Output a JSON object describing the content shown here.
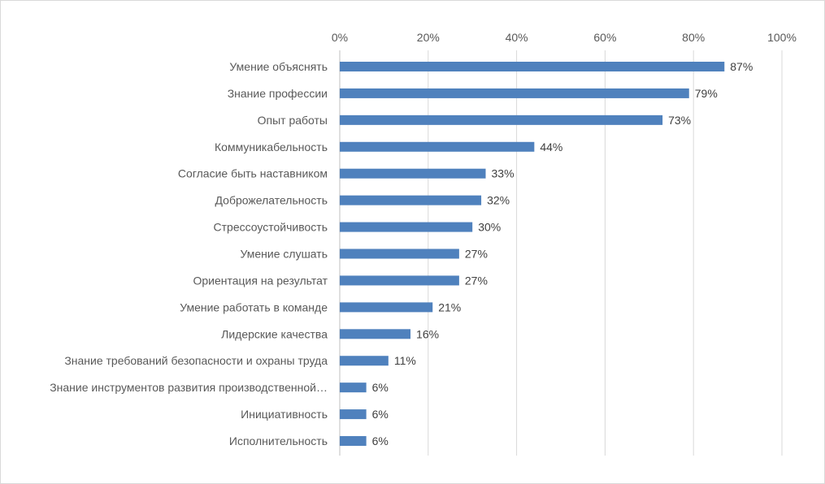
{
  "chart_data": {
    "type": "bar",
    "orientation": "horizontal",
    "title": "",
    "xlabel": "",
    "ylabel": "",
    "xlim": [
      0,
      100
    ],
    "x_ticks": [
      "0%",
      "20%",
      "40%",
      "60%",
      "80%",
      "100%"
    ],
    "x_axis_position": "top",
    "grid": true,
    "bar_color": "#4F81BD",
    "categories": [
      "Умение объяснять",
      "Знание профессии",
      "Опыт работы",
      "Коммуникабельность",
      "Согласие быть наставником",
      "Доброжелательность",
      "Стрессоустойчивость",
      "Умение слушать",
      "Ориентация на результат",
      "Умение работать в команде",
      "Лидерские качества",
      "Знание требований безопасности и охраны труда",
      "Знание инструментов развития производственной…",
      "Инициативность",
      "Исполнительность"
    ],
    "values": [
      87,
      79,
      73,
      44,
      33,
      32,
      30,
      27,
      27,
      21,
      16,
      11,
      6,
      6,
      6
    ],
    "data_labels": [
      "87%",
      "79%",
      "73%",
      "44%",
      "33%",
      "32%",
      "30%",
      "27%",
      "27%",
      "21%",
      "16%",
      "11%",
      "6%",
      "6%",
      "6%"
    ]
  }
}
